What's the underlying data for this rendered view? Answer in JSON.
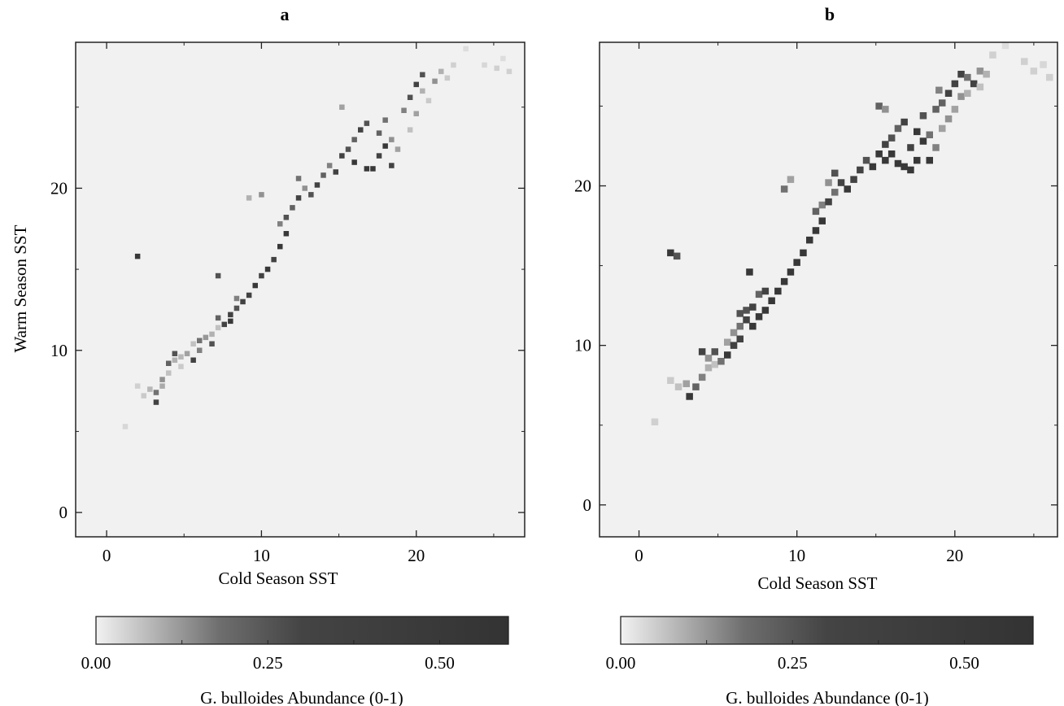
{
  "chart_data": [
    {
      "type": "heatmap",
      "panel_label": "a",
      "xlabel": "Cold Season SST",
      "ylabel": "Warm Season SST",
      "xlim": [
        -2,
        27
      ],
      "ylim": [
        -1.5,
        29
      ],
      "xticks": [
        0,
        10,
        20
      ],
      "yticks": [
        0,
        10,
        20
      ],
      "grid": false,
      "colorbar": {
        "label": "G. bulloides Abundance (0-1)",
        "ticks": [
          "0.00",
          "0.25",
          "0.50"
        ],
        "range": [
          0,
          0.6
        ],
        "placement": "bottom"
      },
      "cells": [
        {
          "x": 1.2,
          "y": 5.3,
          "v": 0.08
        },
        {
          "x": 2.0,
          "y": 7.8,
          "v": 0.1
        },
        {
          "x": 2.4,
          "y": 7.2,
          "v": 0.12
        },
        {
          "x": 2.8,
          "y": 7.6,
          "v": 0.18
        },
        {
          "x": 3.2,
          "y": 6.8,
          "v": 0.55
        },
        {
          "x": 3.2,
          "y": 7.4,
          "v": 0.4
        },
        {
          "x": 3.6,
          "y": 8.2,
          "v": 0.3
        },
        {
          "x": 3.6,
          "y": 7.8,
          "v": 0.22
        },
        {
          "x": 4.0,
          "y": 8.6,
          "v": 0.15
        },
        {
          "x": 4.0,
          "y": 9.2,
          "v": 0.45
        },
        {
          "x": 4.4,
          "y": 9.8,
          "v": 0.5
        },
        {
          "x": 4.4,
          "y": 9.4,
          "v": 0.2
        },
        {
          "x": 4.8,
          "y": 9.0,
          "v": 0.12
        },
        {
          "x": 4.8,
          "y": 9.6,
          "v": 0.18
        },
        {
          "x": 5.2,
          "y": 9.8,
          "v": 0.25
        },
        {
          "x": 5.6,
          "y": 10.4,
          "v": 0.15
        },
        {
          "x": 5.6,
          "y": 9.4,
          "v": 0.55
        },
        {
          "x": 6.0,
          "y": 10.6,
          "v": 0.4
        },
        {
          "x": 6.0,
          "y": 10.0,
          "v": 0.35
        },
        {
          "x": 6.4,
          "y": 10.8,
          "v": 0.28
        },
        {
          "x": 6.8,
          "y": 11.0,
          "v": 0.2
        },
        {
          "x": 6.8,
          "y": 10.4,
          "v": 0.5
        },
        {
          "x": 7.2,
          "y": 11.4,
          "v": 0.15
        },
        {
          "x": 7.2,
          "y": 12.0,
          "v": 0.45
        },
        {
          "x": 7.6,
          "y": 11.6,
          "v": 0.55
        },
        {
          "x": 8.0,
          "y": 12.2,
          "v": 0.55
        },
        {
          "x": 8.0,
          "y": 11.8,
          "v": 0.58
        },
        {
          "x": 8.4,
          "y": 12.6,
          "v": 0.5
        },
        {
          "x": 8.4,
          "y": 13.2,
          "v": 0.35
        },
        {
          "x": 8.8,
          "y": 13.0,
          "v": 0.55
        },
        {
          "x": 9.2,
          "y": 13.4,
          "v": 0.55
        },
        {
          "x": 9.6,
          "y": 14.0,
          "v": 0.58
        },
        {
          "x": 10.0,
          "y": 14.6,
          "v": 0.55
        },
        {
          "x": 10.4,
          "y": 15.0,
          "v": 0.58
        },
        {
          "x": 10.8,
          "y": 15.6,
          "v": 0.55
        },
        {
          "x": 11.2,
          "y": 16.4,
          "v": 0.58
        },
        {
          "x": 11.6,
          "y": 17.2,
          "v": 0.58
        },
        {
          "x": 11.6,
          "y": 18.2,
          "v": 0.5
        },
        {
          "x": 11.2,
          "y": 17.8,
          "v": 0.35
        },
        {
          "x": 12.0,
          "y": 18.8,
          "v": 0.45
        },
        {
          "x": 12.4,
          "y": 19.4,
          "v": 0.55
        },
        {
          "x": 12.4,
          "y": 20.6,
          "v": 0.4
        },
        {
          "x": 12.8,
          "y": 20.0,
          "v": 0.3
        },
        {
          "x": 13.2,
          "y": 19.6,
          "v": 0.5
        },
        {
          "x": 13.6,
          "y": 20.2,
          "v": 0.55
        },
        {
          "x": 14.0,
          "y": 20.8,
          "v": 0.45
        },
        {
          "x": 14.4,
          "y": 21.4,
          "v": 0.35
        },
        {
          "x": 14.8,
          "y": 21.0,
          "v": 0.55
        },
        {
          "x": 15.2,
          "y": 22.0,
          "v": 0.55
        },
        {
          "x": 15.6,
          "y": 22.4,
          "v": 0.5
        },
        {
          "x": 16.0,
          "y": 21.6,
          "v": 0.58
        },
        {
          "x": 16.0,
          "y": 23.0,
          "v": 0.45
        },
        {
          "x": 16.4,
          "y": 23.6,
          "v": 0.55
        },
        {
          "x": 16.8,
          "y": 24.0,
          "v": 0.5
        },
        {
          "x": 16.8,
          "y": 21.2,
          "v": 0.58
        },
        {
          "x": 17.2,
          "y": 21.2,
          "v": 0.58
        },
        {
          "x": 17.6,
          "y": 22.0,
          "v": 0.55
        },
        {
          "x": 17.6,
          "y": 23.4,
          "v": 0.45
        },
        {
          "x": 18.0,
          "y": 22.6,
          "v": 0.58
        },
        {
          "x": 18.0,
          "y": 24.2,
          "v": 0.4
        },
        {
          "x": 18.4,
          "y": 21.4,
          "v": 0.55
        },
        {
          "x": 18.4,
          "y": 23.0,
          "v": 0.3
        },
        {
          "x": 18.8,
          "y": 22.4,
          "v": 0.25
        },
        {
          "x": 19.2,
          "y": 24.8,
          "v": 0.35
        },
        {
          "x": 19.6,
          "y": 25.6,
          "v": 0.5
        },
        {
          "x": 19.6,
          "y": 23.6,
          "v": 0.15
        },
        {
          "x": 20.0,
          "y": 26.4,
          "v": 0.55
        },
        {
          "x": 20.0,
          "y": 24.6,
          "v": 0.25
        },
        {
          "x": 20.4,
          "y": 27.0,
          "v": 0.5
        },
        {
          "x": 20.4,
          "y": 26.0,
          "v": 0.2
        },
        {
          "x": 20.8,
          "y": 25.4,
          "v": 0.12
        },
        {
          "x": 21.2,
          "y": 26.6,
          "v": 0.3
        },
        {
          "x": 21.6,
          "y": 27.2,
          "v": 0.2
        },
        {
          "x": 22.0,
          "y": 26.8,
          "v": 0.12
        },
        {
          "x": 22.4,
          "y": 27.6,
          "v": 0.1
        },
        {
          "x": 23.2,
          "y": 28.6,
          "v": 0.06
        },
        {
          "x": 24.4,
          "y": 27.6,
          "v": 0.08
        },
        {
          "x": 25.2,
          "y": 27.4,
          "v": 0.1
        },
        {
          "x": 25.6,
          "y": 28.0,
          "v": 0.06
        },
        {
          "x": 26.0,
          "y": 27.2,
          "v": 0.1
        },
        {
          "x": 10.0,
          "y": 19.6,
          "v": 0.3
        },
        {
          "x": 9.2,
          "y": 19.4,
          "v": 0.2
        },
        {
          "x": 7.2,
          "y": 14.6,
          "v": 0.5
        },
        {
          "x": 2.0,
          "y": 15.8,
          "v": 0.58
        },
        {
          "x": 15.2,
          "y": 25.0,
          "v": 0.25
        }
      ]
    },
    {
      "type": "heatmap",
      "panel_label": "b",
      "xlabel": "Cold Season SST",
      "ylabel": "",
      "xlim": [
        -2.5,
        26.5
      ],
      "ylim": [
        -2,
        29
      ],
      "xticks": [
        0,
        10,
        20
      ],
      "yticks": [
        0,
        10,
        20
      ],
      "grid": false,
      "colorbar": {
        "label": "G. bulloides Abundance (0-1)",
        "ticks": [
          "0.00",
          "0.25",
          "0.50"
        ],
        "range": [
          0,
          0.6
        ],
        "placement": "bottom"
      },
      "cells": [
        {
          "x": 1.0,
          "y": 5.2,
          "v": 0.1
        },
        {
          "x": 2.0,
          "y": 7.8,
          "v": 0.12
        },
        {
          "x": 2.5,
          "y": 7.4,
          "v": 0.15
        },
        {
          "x": 3.0,
          "y": 7.6,
          "v": 0.25
        },
        {
          "x": 3.2,
          "y": 6.8,
          "v": 0.58
        },
        {
          "x": 3.6,
          "y": 7.4,
          "v": 0.45
        },
        {
          "x": 4.0,
          "y": 8.0,
          "v": 0.35
        },
        {
          "x": 4.0,
          "y": 9.6,
          "v": 0.55
        },
        {
          "x": 4.4,
          "y": 8.6,
          "v": 0.2
        },
        {
          "x": 4.4,
          "y": 9.2,
          "v": 0.3
        },
        {
          "x": 4.8,
          "y": 9.6,
          "v": 0.5
        },
        {
          "x": 4.8,
          "y": 8.8,
          "v": 0.15
        },
        {
          "x": 5.2,
          "y": 9.0,
          "v": 0.4
        },
        {
          "x": 5.6,
          "y": 9.4,
          "v": 0.58
        },
        {
          "x": 5.6,
          "y": 10.2,
          "v": 0.25
        },
        {
          "x": 6.0,
          "y": 10.0,
          "v": 0.55
        },
        {
          "x": 6.0,
          "y": 10.8,
          "v": 0.3
        },
        {
          "x": 6.4,
          "y": 10.4,
          "v": 0.55
        },
        {
          "x": 6.4,
          "y": 11.2,
          "v": 0.4
        },
        {
          "x": 6.8,
          "y": 11.6,
          "v": 0.55
        },
        {
          "x": 6.8,
          "y": 12.2,
          "v": 0.5
        },
        {
          "x": 7.2,
          "y": 11.2,
          "v": 0.58
        },
        {
          "x": 7.2,
          "y": 12.4,
          "v": 0.55
        },
        {
          "x": 7.6,
          "y": 11.8,
          "v": 0.58
        },
        {
          "x": 7.6,
          "y": 13.2,
          "v": 0.45
        },
        {
          "x": 8.0,
          "y": 12.2,
          "v": 0.58
        },
        {
          "x": 8.0,
          "y": 13.4,
          "v": 0.55
        },
        {
          "x": 8.4,
          "y": 12.8,
          "v": 0.58
        },
        {
          "x": 8.8,
          "y": 13.4,
          "v": 0.58
        },
        {
          "x": 9.2,
          "y": 14.0,
          "v": 0.58
        },
        {
          "x": 9.6,
          "y": 14.6,
          "v": 0.58
        },
        {
          "x": 10.0,
          "y": 15.2,
          "v": 0.58
        },
        {
          "x": 10.4,
          "y": 15.8,
          "v": 0.58
        },
        {
          "x": 10.8,
          "y": 16.6,
          "v": 0.58
        },
        {
          "x": 11.2,
          "y": 17.2,
          "v": 0.58
        },
        {
          "x": 11.2,
          "y": 18.4,
          "v": 0.45
        },
        {
          "x": 11.6,
          "y": 17.8,
          "v": 0.58
        },
        {
          "x": 11.6,
          "y": 18.8,
          "v": 0.35
        },
        {
          "x": 12.0,
          "y": 19.0,
          "v": 0.55
        },
        {
          "x": 12.0,
          "y": 20.2,
          "v": 0.3
        },
        {
          "x": 12.4,
          "y": 20.8,
          "v": 0.5
        },
        {
          "x": 12.4,
          "y": 19.6,
          "v": 0.4
        },
        {
          "x": 12.8,
          "y": 20.2,
          "v": 0.55
        },
        {
          "x": 13.2,
          "y": 19.8,
          "v": 0.58
        },
        {
          "x": 13.6,
          "y": 20.4,
          "v": 0.55
        },
        {
          "x": 14.0,
          "y": 21.0,
          "v": 0.55
        },
        {
          "x": 14.4,
          "y": 21.6,
          "v": 0.5
        },
        {
          "x": 14.8,
          "y": 21.2,
          "v": 0.58
        },
        {
          "x": 15.2,
          "y": 22.0,
          "v": 0.58
        },
        {
          "x": 15.6,
          "y": 22.6,
          "v": 0.55
        },
        {
          "x": 15.6,
          "y": 21.6,
          "v": 0.58
        },
        {
          "x": 16.0,
          "y": 23.0,
          "v": 0.5
        },
        {
          "x": 16.0,
          "y": 22.0,
          "v": 0.58
        },
        {
          "x": 16.4,
          "y": 23.6,
          "v": 0.45
        },
        {
          "x": 16.4,
          "y": 21.4,
          "v": 0.58
        },
        {
          "x": 16.8,
          "y": 24.0,
          "v": 0.55
        },
        {
          "x": 16.8,
          "y": 21.2,
          "v": 0.58
        },
        {
          "x": 17.2,
          "y": 22.4,
          "v": 0.55
        },
        {
          "x": 17.2,
          "y": 21.0,
          "v": 0.58
        },
        {
          "x": 17.6,
          "y": 23.4,
          "v": 0.58
        },
        {
          "x": 17.6,
          "y": 21.6,
          "v": 0.58
        },
        {
          "x": 18.0,
          "y": 22.8,
          "v": 0.58
        },
        {
          "x": 18.0,
          "y": 24.4,
          "v": 0.5
        },
        {
          "x": 18.4,
          "y": 21.6,
          "v": 0.58
        },
        {
          "x": 18.4,
          "y": 23.2,
          "v": 0.4
        },
        {
          "x": 18.8,
          "y": 22.4,
          "v": 0.35
        },
        {
          "x": 18.8,
          "y": 24.8,
          "v": 0.45
        },
        {
          "x": 19.2,
          "y": 25.2,
          "v": 0.45
        },
        {
          "x": 19.2,
          "y": 23.6,
          "v": 0.25
        },
        {
          "x": 19.6,
          "y": 25.8,
          "v": 0.55
        },
        {
          "x": 19.6,
          "y": 24.2,
          "v": 0.3
        },
        {
          "x": 20.0,
          "y": 26.4,
          "v": 0.55
        },
        {
          "x": 20.0,
          "y": 24.8,
          "v": 0.25
        },
        {
          "x": 20.4,
          "y": 27.0,
          "v": 0.55
        },
        {
          "x": 20.4,
          "y": 25.6,
          "v": 0.3
        },
        {
          "x": 20.8,
          "y": 25.8,
          "v": 0.2
        },
        {
          "x": 20.8,
          "y": 26.8,
          "v": 0.4
        },
        {
          "x": 21.2,
          "y": 26.4,
          "v": 0.55
        },
        {
          "x": 21.6,
          "y": 27.2,
          "v": 0.3
        },
        {
          "x": 21.6,
          "y": 26.2,
          "v": 0.15
        },
        {
          "x": 22.0,
          "y": 27.0,
          "v": 0.2
        },
        {
          "x": 22.4,
          "y": 28.2,
          "v": 0.1
        },
        {
          "x": 23.2,
          "y": 28.8,
          "v": 0.06
        },
        {
          "x": 24.4,
          "y": 27.8,
          "v": 0.1
        },
        {
          "x": 25.0,
          "y": 27.2,
          "v": 0.1
        },
        {
          "x": 25.6,
          "y": 27.6,
          "v": 0.08
        },
        {
          "x": 26.0,
          "y": 26.8,
          "v": 0.1
        },
        {
          "x": 15.2,
          "y": 25.0,
          "v": 0.45
        },
        {
          "x": 15.6,
          "y": 24.8,
          "v": 0.3
        },
        {
          "x": 9.2,
          "y": 19.8,
          "v": 0.4
        },
        {
          "x": 9.6,
          "y": 20.4,
          "v": 0.25
        },
        {
          "x": 7.0,
          "y": 14.6,
          "v": 0.58
        },
        {
          "x": 2.0,
          "y": 15.8,
          "v": 0.58
        },
        {
          "x": 2.4,
          "y": 15.6,
          "v": 0.5
        },
        {
          "x": 6.4,
          "y": 12.0,
          "v": 0.5
        },
        {
          "x": 19.0,
          "y": 26.0,
          "v": 0.35
        }
      ]
    }
  ]
}
